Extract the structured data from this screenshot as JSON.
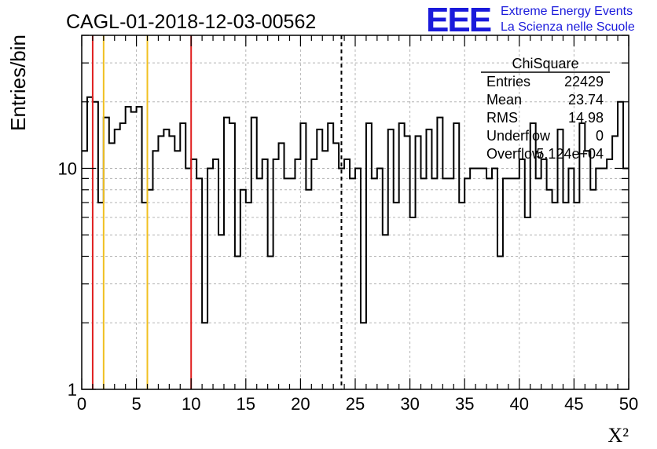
{
  "header": {
    "run_title": "CAGL-01-2018-12-03-00562",
    "logo_letters": "EEE",
    "logo_line1": "Extreme Energy Events",
    "logo_line2": "La Scienza nelle Scuole",
    "logo_color": "#1a1adb"
  },
  "stats_box": {
    "title": "ChiSquare",
    "rows": [
      {
        "label": "Entries",
        "value": "22429"
      },
      {
        "label": "Mean",
        "value": "23.74"
      },
      {
        "label": "RMS",
        "value": "14.98"
      },
      {
        "label": "Underflow",
        "value": "0"
      },
      {
        "label": "Overflow",
        "value": "5.124e+04"
      }
    ]
  },
  "chart_data": {
    "type": "histogram",
    "xlabel": "X²",
    "ylabel": "Entries/bin",
    "xlim": [
      0,
      50
    ],
    "ylim": [
      1,
      40
    ],
    "y_scale": "log",
    "x_ticks": [
      "0",
      "5",
      "10",
      "15",
      "20",
      "25",
      "30",
      "35",
      "40",
      "45",
      "50"
    ],
    "y_tick_labels": [
      {
        "value": 1,
        "label": "1"
      },
      {
        "value": 10,
        "label": "10"
      }
    ],
    "grid": true,
    "bin_width": 0.5,
    "values": [
      12,
      21,
      20,
      7,
      17,
      13,
      15,
      16,
      19,
      18,
      19,
      7,
      8,
      12,
      14,
      15,
      14,
      12,
      16,
      10,
      11,
      9,
      2,
      10,
      11,
      5,
      17,
      16,
      4,
      8,
      7,
      17,
      9,
      11,
      4,
      11,
      13,
      9,
      9,
      11,
      16,
      8,
      11,
      15,
      12,
      16,
      13,
      10,
      11,
      9,
      10,
      2,
      16,
      9,
      10,
      5,
      15,
      7,
      16,
      14,
      6,
      14,
      9,
      15,
      9,
      17,
      9,
      9,
      16,
      7,
      9,
      10,
      10,
      10,
      9,
      10,
      4,
      9,
      9,
      9,
      11,
      6,
      16,
      9,
      11,
      8,
      7,
      15,
      7,
      10,
      7,
      16,
      12,
      8,
      10,
      10,
      11,
      14,
      20,
      10
    ],
    "vertical_lines": [
      {
        "x": 1,
        "color": "#e01f1f",
        "style": "solid"
      },
      {
        "x": 2,
        "color": "#f0c020",
        "style": "solid"
      },
      {
        "x": 6,
        "color": "#f0c020",
        "style": "solid"
      },
      {
        "x": 10,
        "color": "#e01f1f",
        "style": "solid"
      },
      {
        "x": 23.74,
        "color": "#000000",
        "style": "dashed"
      }
    ]
  }
}
